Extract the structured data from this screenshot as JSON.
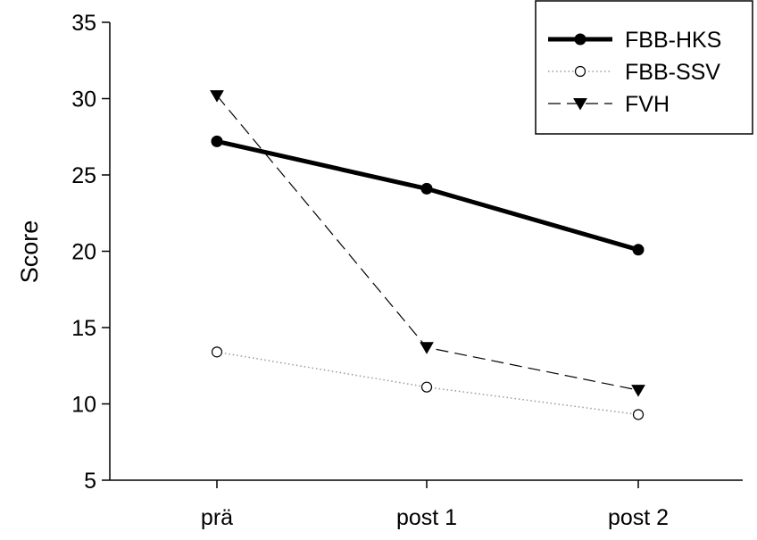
{
  "chart_data": {
    "type": "line",
    "title": "",
    "xlabel": "",
    "ylabel": "Score",
    "categories": [
      "prä",
      "post 1",
      "post 2"
    ],
    "ylim": [
      5,
      35
    ],
    "yticks": [
      5,
      10,
      15,
      20,
      25,
      30,
      35
    ],
    "grid": false,
    "legend": "top-right",
    "series": [
      {
        "name": "FBB-HKS",
        "values": [
          27.2,
          24.1,
          20.1
        ],
        "marker": "filled-circle",
        "line": "solid-thick",
        "color": "#000000"
      },
      {
        "name": "FBB-SSV",
        "values": [
          13.4,
          11.1,
          9.3
        ],
        "marker": "open-circle",
        "line": "dotted",
        "color": "#9a9a9a"
      },
      {
        "name": "FVH",
        "values": [
          30.2,
          13.7,
          10.9
        ],
        "marker": "filled-triangle-down",
        "line": "dashed",
        "color": "#000000"
      }
    ]
  }
}
